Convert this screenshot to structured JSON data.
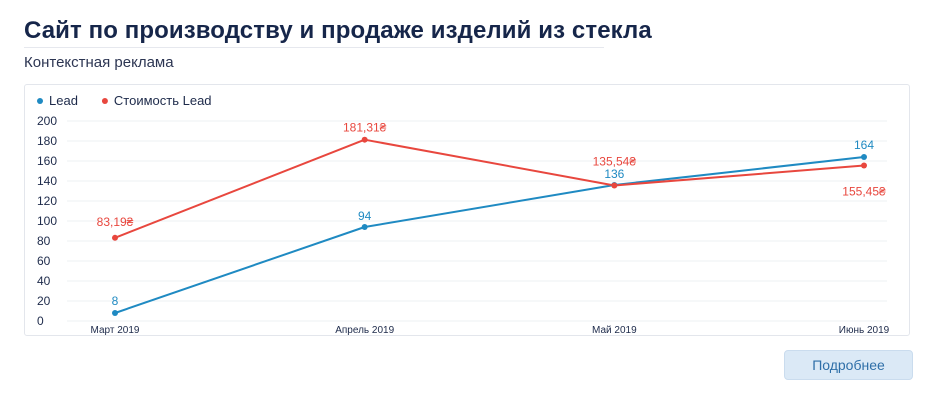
{
  "header": {
    "title": "Сайт по производству и продаже изделий из стекла",
    "subtitle": "Контекстная реклама"
  },
  "actions": {
    "more_label": "Подробнее"
  },
  "colors": {
    "lead": "#1f8ac2",
    "cost": "#e8473e",
    "grid": "#eef0f3"
  },
  "chart_data": {
    "type": "line",
    "categories": [
      "Март 2019",
      "Апрель 2019",
      "Май 2019",
      "Июнь 2019"
    ],
    "ylim": [
      0,
      200
    ],
    "yticks": [
      0,
      20,
      40,
      60,
      80,
      100,
      120,
      140,
      160,
      180,
      200
    ],
    "legend_position": "top-left",
    "grid": true,
    "series": [
      {
        "name": "Lead",
        "color": "#1f8ac2",
        "values": [
          8,
          94,
          136,
          164
        ],
        "labels": [
          "8",
          "94",
          "136",
          "164"
        ]
      },
      {
        "name": "Стоимость Lead",
        "color": "#e8473e",
        "values": [
          83.19,
          181.31,
          135.54,
          155.45
        ],
        "labels": [
          "83,19₴",
          "181,31₴",
          "135,54₴",
          "155,45₴"
        ]
      }
    ]
  }
}
